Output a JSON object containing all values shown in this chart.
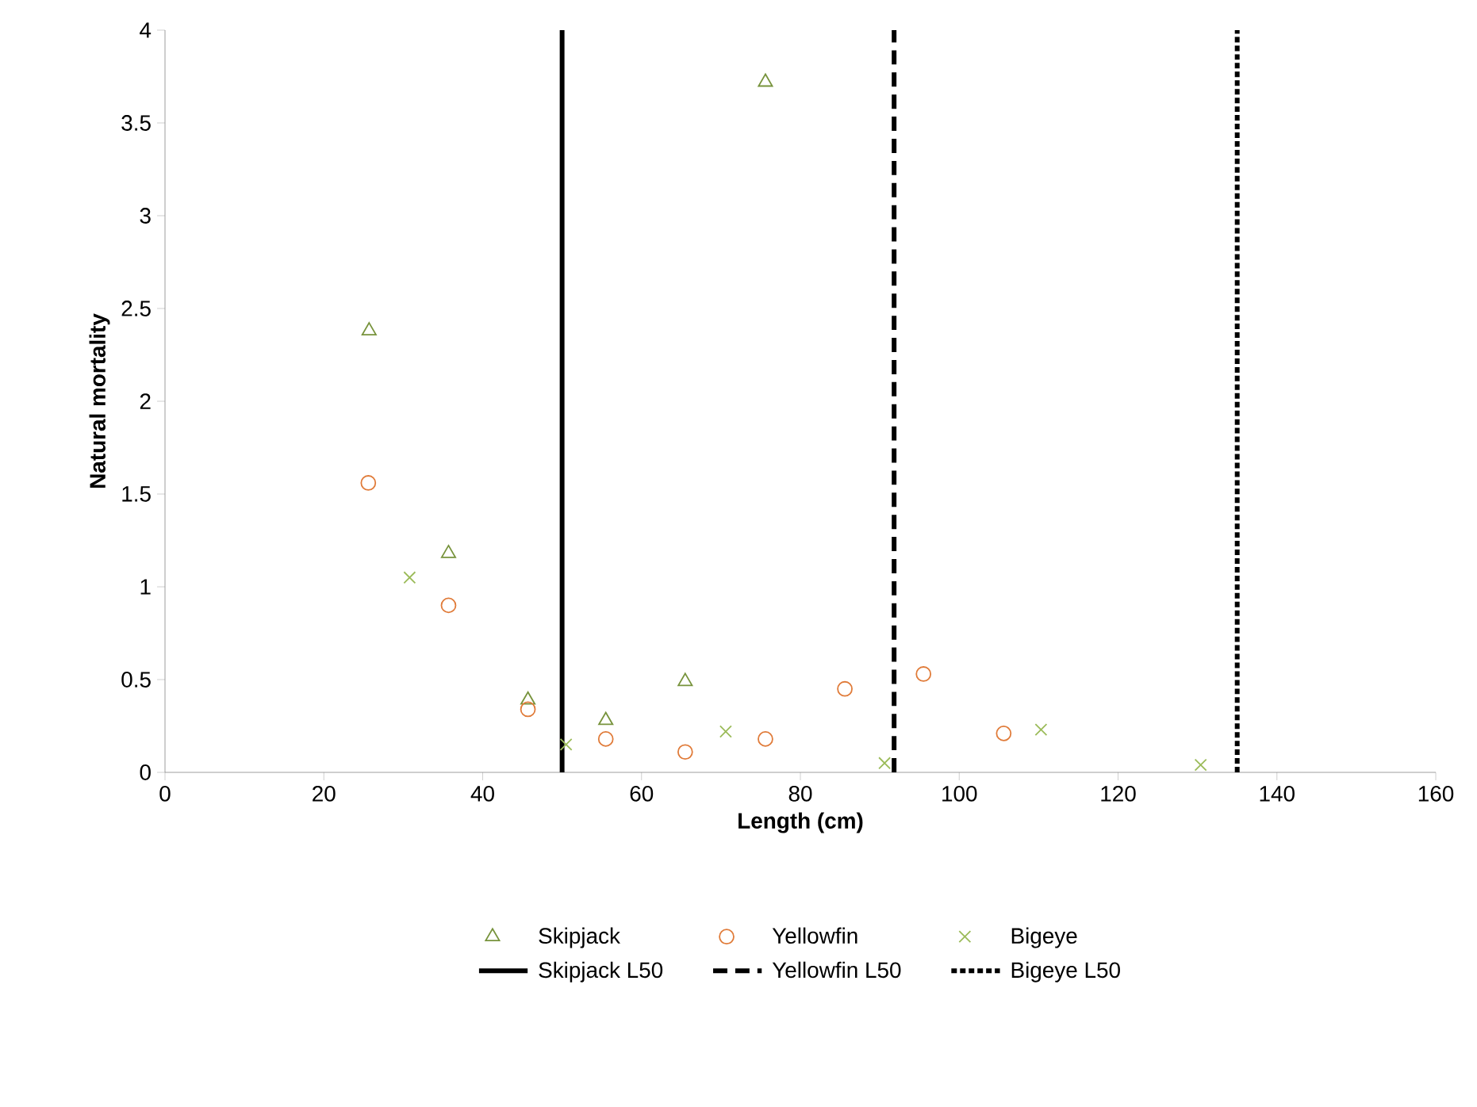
{
  "chart_data": {
    "type": "scatter",
    "xlabel": "Length (cm)",
    "ylabel": "Natural mortality",
    "xlim": [
      0,
      160
    ],
    "xticks": [
      0,
      20,
      40,
      60,
      80,
      100,
      120,
      140,
      160
    ],
    "ylim": [
      0,
      4
    ],
    "yticks": [
      0,
      0.5,
      1,
      1.5,
      2,
      2.5,
      3,
      3.5,
      4
    ],
    "grid": false,
    "legend": "bottom",
    "series": [
      {
        "name": "Skipjack",
        "color": "#77933c",
        "marker": "triangle",
        "x": [
          25.7,
          35.7,
          45.7,
          55.5,
          65.5,
          75.6
        ],
        "values": [
          2.38,
          1.18,
          0.39,
          0.28,
          0.49,
          3.72
        ]
      },
      {
        "name": "Yellowfin",
        "color": "#e07b39",
        "marker": "circle",
        "x": [
          25.6,
          35.7,
          45.7,
          55.5,
          65.5,
          75.6,
          85.6,
          95.5,
          105.6
        ],
        "values": [
          1.56,
          0.9,
          0.34,
          0.18,
          0.11,
          0.18,
          0.45,
          0.53,
          0.21
        ]
      },
      {
        "name": "Bigeye",
        "color": "#9bbb59",
        "marker": "cross",
        "x": [
          30.8,
          50.5,
          70.6,
          90.6,
          110.3,
          130.4
        ],
        "values": [
          1.05,
          0.15,
          0.22,
          0.05,
          0.23,
          0.04
        ]
      }
    ],
    "ref_lines": [
      {
        "axis": "x",
        "value": 50,
        "label": "Skipjack L50",
        "color": "#000000",
        "line_style": "solid"
      },
      {
        "axis": "x",
        "value": 91.8,
        "label": "Yellowfin L50",
        "color": "#000000",
        "line_style": "dashed"
      },
      {
        "axis": "x",
        "value": 135,
        "label": "Bigeye L50",
        "color": "#000000",
        "line_style": "dotted"
      }
    ]
  }
}
